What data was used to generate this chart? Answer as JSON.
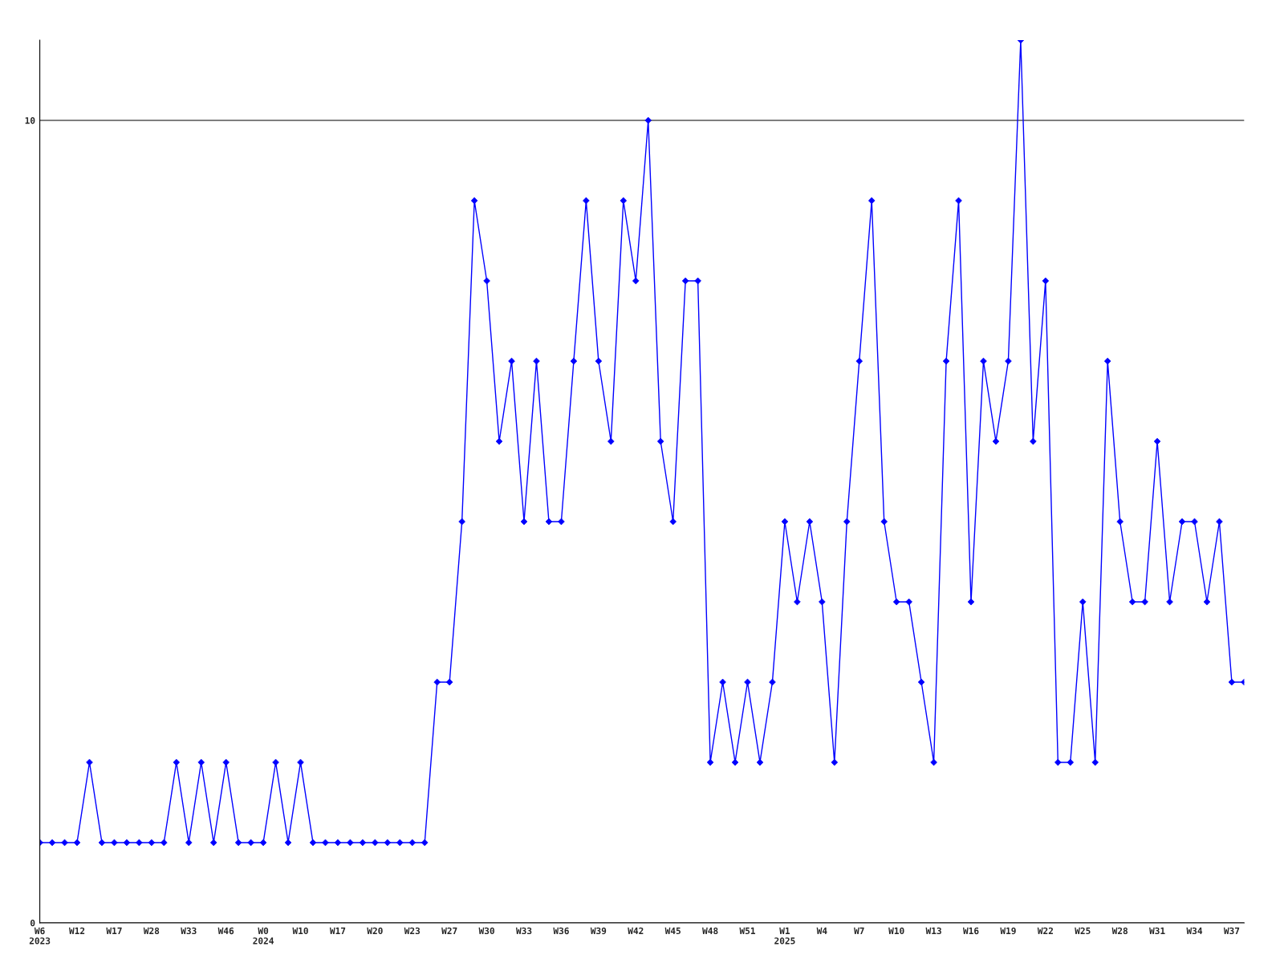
{
  "chart_data": {
    "type": "line",
    "categories": [
      "W6\n2023",
      null,
      null,
      "W12",
      null,
      null,
      "W17",
      null,
      null,
      "W28",
      null,
      null,
      "W33",
      null,
      null,
      "W46",
      null,
      null,
      "W0\n2024",
      null,
      null,
      "W10",
      null,
      null,
      "W17",
      null,
      null,
      "W20",
      null,
      null,
      "W23",
      null,
      null,
      "W27",
      null,
      null,
      "W30",
      null,
      null,
      "W33",
      null,
      null,
      "W36",
      null,
      null,
      "W39",
      null,
      null,
      "W42",
      null,
      null,
      "W45",
      null,
      null,
      "W48",
      null,
      null,
      "W51",
      null,
      null,
      "W1\n2025",
      null,
      null,
      "W4",
      null,
      null,
      "W7",
      null,
      null,
      "W10",
      null,
      null,
      "W13",
      null,
      null,
      "W16",
      null,
      null,
      "W19",
      null,
      null,
      "W22",
      null,
      null,
      "W25",
      null,
      null,
      "W28",
      null,
      null,
      "W31",
      null,
      null,
      "W34",
      null,
      null,
      "W37",
      null
    ],
    "series": [
      {
        "color": "#0000ff",
        "values": [
          1,
          1,
          1,
          1,
          2,
          1,
          1,
          1,
          1,
          1,
          1,
          2,
          1,
          2,
          1,
          2,
          1,
          1,
          1,
          2,
          1,
          2,
          1,
          1,
          1,
          1,
          1,
          1,
          1,
          1,
          1,
          1,
          3,
          3,
          5,
          9,
          8,
          6,
          7,
          5,
          7,
          5,
          5,
          7,
          9,
          7,
          6,
          9,
          8,
          10,
          6,
          5,
          8,
          8,
          2,
          3,
          2,
          3,
          2,
          3,
          5,
          4,
          5,
          4,
          2,
          5,
          7,
          9,
          5,
          4,
          4,
          3,
          2,
          7,
          9,
          4,
          7,
          6,
          7,
          11,
          6,
          8,
          2,
          2,
          4,
          2,
          7,
          5,
          4,
          4,
          6,
          4,
          5,
          5,
          4,
          5,
          3,
          3
        ]
      }
    ],
    "ylim": [
      0,
      11
    ],
    "yticks": [
      0,
      10
    ],
    "grid": "y",
    "marker": "diamond",
    "line_style": "solid"
  }
}
